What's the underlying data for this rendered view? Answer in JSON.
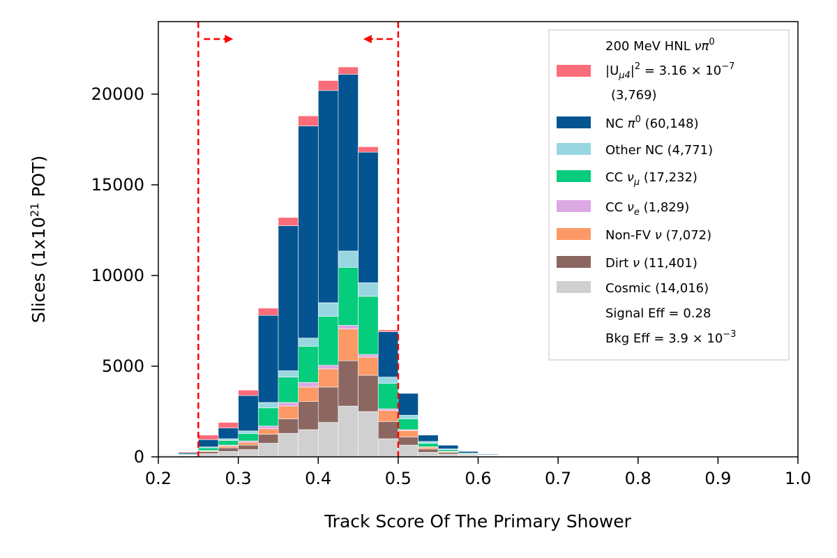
{
  "chart_data": {
    "type": "bar",
    "stacked": true,
    "xlabel": "Track Score Of The Primary Shower",
    "ylabel": "Slices (1x10",
    "ylabel_sup": "21",
    "ylabel_end": " POT)",
    "xlim": [
      0.2,
      1.0
    ],
    "ylim": [
      0,
      24000
    ],
    "xticks": [
      "0.2",
      "0.3",
      "0.4",
      "0.5",
      "0.6",
      "0.7",
      "0.8",
      "0.9",
      "1.0"
    ],
    "yticks": [
      "0",
      "5000",
      "10000",
      "15000",
      "20000"
    ],
    "bin_edges": [
      0.2,
      0.225,
      0.25,
      0.275,
      0.3,
      0.325,
      0.35,
      0.375,
      0.4,
      0.425,
      0.45,
      0.475,
      0.5,
      0.525,
      0.55,
      0.575,
      0.6,
      0.625
    ],
    "series": [
      {
        "key": "cosmic",
        "color": "#d0d0d0",
        "values": [
          30,
          60,
          180,
          300,
          400,
          750,
          1300,
          1500,
          1900,
          2800,
          2500,
          1000,
          650,
          250,
          150,
          70,
          50
        ]
      },
      {
        "key": "dirt",
        "color": "#8c6762",
        "values": [
          10,
          30,
          100,
          200,
          250,
          500,
          800,
          1550,
          1950,
          2500,
          2000,
          950,
          450,
          180,
          90,
          40,
          20
        ]
      },
      {
        "key": "nonfv",
        "color": "#fc9966",
        "values": [
          5,
          10,
          50,
          100,
          150,
          300,
          700,
          800,
          1000,
          1750,
          1000,
          600,
          350,
          100,
          50,
          30,
          10
        ]
      },
      {
        "key": "ccnue",
        "color": "#dca8e4",
        "values": [
          0,
          5,
          20,
          50,
          80,
          150,
          200,
          250,
          200,
          200,
          150,
          100,
          50,
          20,
          10,
          5,
          0
        ]
      },
      {
        "key": "ccnumu",
        "color": "#06cc7d",
        "values": [
          15,
          35,
          150,
          250,
          400,
          1000,
          1400,
          2000,
          2700,
          3200,
          3200,
          1400,
          600,
          200,
          90,
          40,
          20
        ]
      },
      {
        "key": "othernc",
        "color": "#98d7e2",
        "values": [
          5,
          10,
          50,
          100,
          150,
          300,
          350,
          450,
          750,
          900,
          750,
          350,
          200,
          100,
          50,
          25,
          10
        ]
      },
      {
        "key": "ncpi0",
        "color": "#035490",
        "values": [
          30,
          70,
          400,
          600,
          1950,
          4800,
          8000,
          11700,
          11700,
          9750,
          7200,
          2500,
          1200,
          350,
          200,
          90,
          40
        ]
      },
      {
        "key": "signal",
        "color": "#fd6c79",
        "values": [
          0,
          50,
          250,
          300,
          300,
          400,
          450,
          550,
          550,
          400,
          300,
          100,
          0,
          0,
          0,
          0,
          0
        ]
      }
    ],
    "cut_lines": [
      0.25,
      0.5
    ],
    "legend": {
      "placement": "top-right",
      "signal": {
        "line1_pre": "200 MeV HNL ",
        "line1_var": "νπ",
        "line1_sup": "0",
        "line2_pre": "|U",
        "line2_sub": "μ4",
        "line2_mid": "|",
        "line2_sup": "2",
        "line2_eq": " = 3.16 × 10",
        "line2_exp": "−7",
        "line3": "(3,769)"
      },
      "entries": [
        {
          "key": "ncpi0",
          "pre": "NC ",
          "var": "π",
          "sup": "0",
          "sub": "",
          "post": " (60,148)"
        },
        {
          "key": "othernc",
          "pre": "Other NC (4,771)",
          "var": "",
          "sup": "",
          "sub": "",
          "post": ""
        },
        {
          "key": "ccnumu",
          "pre": "CC ",
          "var": "ν",
          "sup": "",
          "sub": "μ",
          "post": " (17,232)"
        },
        {
          "key": "ccnue",
          "pre": "CC ",
          "var": "ν",
          "sup": "",
          "sub": "e",
          "post": " (1,829)"
        },
        {
          "key": "nonfv",
          "pre": "Non-FV ",
          "var": "ν",
          "sup": "",
          "sub": "",
          "post": " (7,072)"
        },
        {
          "key": "dirt",
          "pre": "Dirt ",
          "var": "ν",
          "sup": "",
          "sub": "",
          "post": " (11,401)"
        },
        {
          "key": "cosmic",
          "pre": "Cosmic (14,016)",
          "var": "",
          "sup": "",
          "sub": "",
          "post": ""
        }
      ],
      "signal_eff": "Signal Eff = 0.28",
      "bkg_eff_pre": "Bkg Eff = 3.9 × 10",
      "bkg_eff_exp": "−3"
    }
  }
}
